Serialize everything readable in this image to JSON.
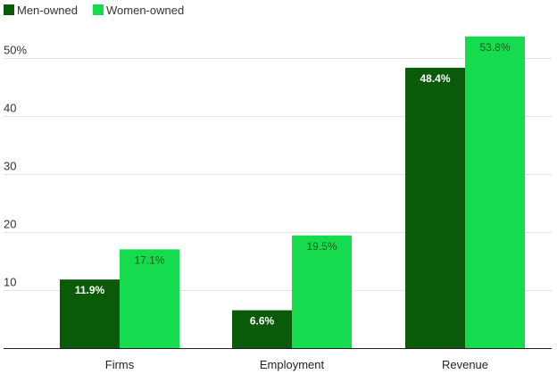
{
  "chart_data": {
    "type": "bar",
    "categories": [
      "Firms",
      "Employment",
      "Revenue"
    ],
    "series": [
      {
        "name": "Men-owned",
        "color": "#0a5a0a",
        "label_color": "#ffffff",
        "label_weight": "bold",
        "values": [
          11.9,
          6.6,
          48.4
        ],
        "labels": [
          "11.9%",
          "6.6%",
          "48.4%"
        ]
      },
      {
        "name": "Women-owned",
        "color": "#17db4f",
        "label_color": "#1f5a1f",
        "label_weight": "normal",
        "values": [
          17.1,
          19.5,
          53.8
        ],
        "labels": [
          "17.1%",
          "19.5%",
          "53.8%"
        ]
      }
    ],
    "y_ticks": [
      {
        "value": 10,
        "label": "10"
      },
      {
        "value": 20,
        "label": "20"
      },
      {
        "value": 30,
        "label": "30"
      },
      {
        "value": 40,
        "label": "40"
      },
      {
        "value": 50,
        "label": "50%"
      }
    ],
    "ylim": [
      0,
      55
    ],
    "grid": true,
    "legend_position": "top-left",
    "title": "",
    "xlabel": "",
    "ylabel": ""
  }
}
